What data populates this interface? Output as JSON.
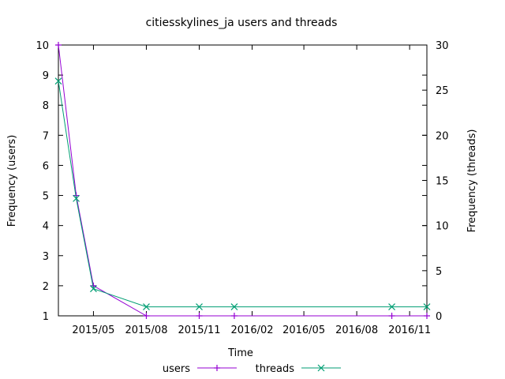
{
  "chart_data": {
    "type": "line",
    "title": "citiesskylines_ja users and threads",
    "xlabel": "Time",
    "ylabel": "Frequency (users)",
    "y2label": "Frequency (threads)",
    "x_ticks": [
      "2015/05",
      "2015/08",
      "2015/11",
      "2016/02",
      "2016/05",
      "2016/08",
      "2016/11"
    ],
    "y_ticks": [
      "1",
      "2",
      "3",
      "4",
      "5",
      "6",
      "7",
      "8",
      "9",
      "10"
    ],
    "y2_ticks": [
      "0",
      "5",
      "10",
      "15",
      "20",
      "25",
      "30"
    ],
    "ylim": [
      1,
      10
    ],
    "y2lim": [
      0,
      30
    ],
    "xlim": [
      "2015-03-01",
      "2016-12-01"
    ],
    "grid": false,
    "legend_position": "bottom",
    "series": [
      {
        "name": "users",
        "axis": "left",
        "color": "#9400d3",
        "marker": "plus",
        "x": [
          "2015-03-01",
          "2015-04-01",
          "2015-05-01",
          "2015-08-01",
          "2015-11-01",
          "2016-01-01",
          "2016-10-01",
          "2016-12-01"
        ],
        "values": [
          10,
          5,
          2,
          1,
          1,
          1,
          1,
          1
        ]
      },
      {
        "name": "threads",
        "axis": "right",
        "color": "#009e73",
        "marker": "cross",
        "x": [
          "2015-03-01",
          "2015-04-01",
          "2015-05-01",
          "2015-08-01",
          "2015-11-01",
          "2016-01-01",
          "2016-10-01",
          "2016-12-01"
        ],
        "values": [
          26,
          13,
          3,
          1,
          1,
          1,
          1,
          1
        ]
      }
    ]
  }
}
